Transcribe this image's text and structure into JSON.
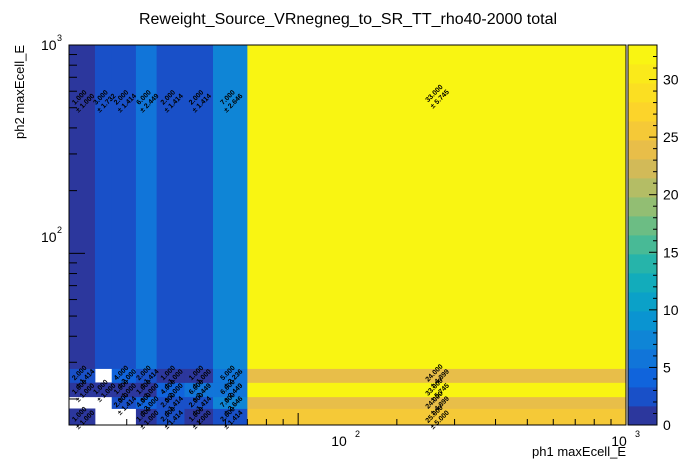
{
  "chart_data": {
    "type": "heatmap",
    "title": "Reweight_Source_VRnegneg_to_SR_TT_rho40-2000 total",
    "xlabel": "ph1 maxEcell_E",
    "ylabel": "ph2 maxEcell_E",
    "x_scale": "log",
    "y_scale": "log",
    "xlim": [
      20,
      1000
    ],
    "ylim": [
      15,
      1000
    ],
    "x_bin_edges": [
      20,
      24,
      27,
      32,
      37,
      45,
      55,
      70,
      1000
    ],
    "y_bin_edges": [
      15,
      18,
      20.5,
      24,
      28,
      1000
    ],
    "z_range": [
      0,
      33
    ],
    "x_tick_labels": [
      {
        "value": 100,
        "base": "10",
        "exp": "2"
      },
      {
        "value": 1000,
        "base": "10",
        "exp": "3"
      }
    ],
    "y_tick_labels": [
      {
        "value": 100,
        "base": "10",
        "exp": "2"
      },
      {
        "value": 1000,
        "base": "10",
        "exp": "3"
      }
    ],
    "colorbar_ticks": [
      "0",
      "5",
      "10",
      "15",
      "20",
      "25",
      "30"
    ],
    "colorbar_tick_values": [
      0,
      5,
      10,
      15,
      20,
      25,
      30
    ],
    "cells": [
      {
        "ix": 0,
        "iy": 0,
        "value": 1,
        "label": "1.000",
        "error": "± 1.000"
      },
      {
        "ix": 3,
        "iy": 0,
        "value": 1,
        "label": "1.000",
        "error": "± 1.000"
      },
      {
        "ix": 4,
        "iy": 0,
        "value": 2,
        "label": "2.000",
        "error": "± 1.414"
      },
      {
        "ix": 5,
        "iy": 0,
        "value": 1,
        "label": "1.000",
        "error": "± 1.000"
      },
      {
        "ix": 6,
        "iy": 0,
        "value": 2,
        "label": "2.000",
        "error": "± 1.414"
      },
      {
        "ix": 7,
        "iy": 0,
        "value": 25,
        "label": "25.000",
        "error": "± 5.000"
      },
      {
        "ix": 2,
        "iy": 1,
        "value": 2,
        "label": "2.000",
        "error": "± 1.414"
      },
      {
        "ix": 3,
        "iy": 1,
        "value": 4,
        "label": "4.000",
        "error": "± 2.000"
      },
      {
        "ix": 4,
        "iy": 1,
        "value": 2,
        "label": "2.000",
        "error": "± 1.414"
      },
      {
        "ix": 5,
        "iy": 1,
        "value": 2,
        "label": "2.000",
        "error": "± 1.414"
      },
      {
        "ix": 6,
        "iy": 1,
        "value": 7,
        "label": "7.000",
        "error": "± 2.646"
      },
      {
        "ix": 7,
        "iy": 1,
        "value": 24,
        "label": "24.000",
        "error": "± 4.899"
      },
      {
        "ix": 0,
        "iy": 2,
        "value": 1,
        "label": "1.000",
        "error": "± 1.000"
      },
      {
        "ix": 1,
        "iy": 2,
        "value": 1,
        "label": "1.000",
        "error": "± 1.000"
      },
      {
        "ix": 2,
        "iy": 2,
        "value": 1,
        "label": "1.000",
        "error": "± 1.000"
      },
      {
        "ix": 3,
        "iy": 2,
        "value": 1,
        "label": "1.000",
        "error": "± 1.000"
      },
      {
        "ix": 4,
        "iy": 2,
        "value": 4,
        "label": "4.000",
        "error": "± 2.000"
      },
      {
        "ix": 5,
        "iy": 2,
        "value": 6,
        "label": "6.000",
        "error": "± 2.449"
      },
      {
        "ix": 6,
        "iy": 2,
        "value": 6,
        "label": "6.000",
        "error": "± 2.449"
      },
      {
        "ix": 7,
        "iy": 2,
        "value": 33,
        "label": "33.000",
        "error": "± 5.745"
      },
      {
        "ix": 0,
        "iy": 3,
        "value": 2,
        "label": "2.000",
        "error": "± 1.414"
      },
      {
        "ix": 2,
        "iy": 3,
        "value": 4,
        "label": "4.000",
        "error": "± 2.000"
      },
      {
        "ix": 3,
        "iy": 3,
        "value": 2,
        "label": "2.000",
        "error": "± 1.414"
      },
      {
        "ix": 4,
        "iy": 3,
        "value": 1,
        "label": "1.000",
        "error": "± 1.000"
      },
      {
        "ix": 5,
        "iy": 3,
        "value": 1,
        "label": "1.000",
        "error": "± 1.000"
      },
      {
        "ix": 6,
        "iy": 3,
        "value": 5,
        "label": "5.000",
        "error": "± 2.236"
      },
      {
        "ix": 7,
        "iy": 3,
        "value": 24,
        "label": "24.000",
        "error": "± 4.899"
      },
      {
        "ix": 0,
        "iy": 4,
        "value": 1,
        "label": "1.000",
        "error": "± 1.000"
      },
      {
        "ix": 1,
        "iy": 4,
        "value": 3,
        "label": "3.000",
        "error": "± 1.732"
      },
      {
        "ix": 2,
        "iy": 4,
        "value": 2,
        "label": "2.000",
        "error": "± 1.414"
      },
      {
        "ix": 3,
        "iy": 4,
        "value": 6,
        "label": "6.000",
        "error": "± 2.449"
      },
      {
        "ix": 4,
        "iy": 4,
        "value": 2,
        "label": "2.000",
        "error": "± 1.414"
      },
      {
        "ix": 5,
        "iy": 4,
        "value": 2,
        "label": "2.000",
        "error": "± 1.414"
      },
      {
        "ix": 6,
        "iy": 4,
        "value": 7,
        "label": "7.000",
        "error": "± 2.646"
      },
      {
        "ix": 7,
        "iy": 4,
        "value": 33,
        "label": "33.000",
        "error": "± 5.745"
      }
    ]
  }
}
